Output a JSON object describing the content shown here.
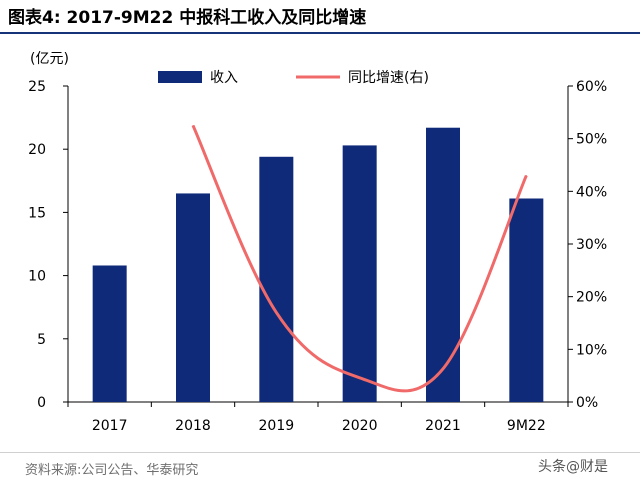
{
  "figure": {
    "title": "图表4:  2017-9M22 中报科工收入及同比增速",
    "source": "资料来源:公司公告、华泰研究",
    "watermark": "头条@财是"
  },
  "colors": {
    "bar": "#0f2a78",
    "line": "#f06a6a",
    "title_rule": "#16337a",
    "axis": "#000000"
  },
  "chart_data": {
    "type": "bar",
    "categories": [
      "2017",
      "2018",
      "2019",
      "2020",
      "2021",
      "9M22"
    ],
    "series": [
      {
        "name": "收入",
        "type": "bar",
        "axis": "left",
        "values": [
          10.8,
          16.5,
          19.4,
          20.3,
          21.7,
          16.1
        ]
      },
      {
        "name": "同比增速(右)",
        "type": "line",
        "axis": "right",
        "values": [
          null,
          52.5,
          17.0,
          4.6,
          6.3,
          43.0
        ]
      }
    ],
    "y_left": {
      "label": "(亿元)",
      "ylim": [
        0,
        25
      ],
      "ticks": [
        "0",
        "5",
        "10",
        "15",
        "20",
        "25"
      ]
    },
    "y_right": {
      "ylim": [
        0,
        60
      ],
      "ticks": [
        "0%",
        "10%",
        "20%",
        "30%",
        "40%",
        "50%",
        "60%"
      ]
    },
    "grid": false,
    "legend_position": "top"
  }
}
